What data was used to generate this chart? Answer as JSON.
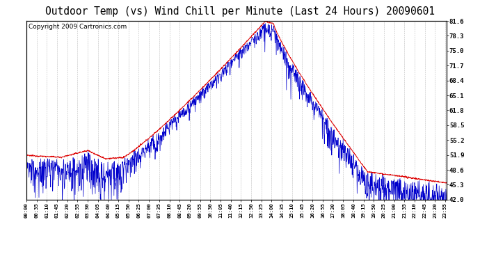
{
  "title": "Outdoor Temp (vs) Wind Chill per Minute (Last 24 Hours) 20090601",
  "copyright": "Copyright 2009 Cartronics.com",
  "y_ticks": [
    42.0,
    45.3,
    48.6,
    51.9,
    55.2,
    58.5,
    61.8,
    65.1,
    68.4,
    71.7,
    75.0,
    78.3,
    81.6
  ],
  "ylim": [
    42.0,
    81.6
  ],
  "x_labels": [
    "00:00",
    "00:35",
    "01:10",
    "01:45",
    "02:20",
    "02:55",
    "03:30",
    "04:05",
    "04:40",
    "05:15",
    "05:50",
    "06:25",
    "07:00",
    "07:35",
    "08:10",
    "08:45",
    "09:20",
    "09:55",
    "10:30",
    "11:05",
    "11:40",
    "12:15",
    "12:50",
    "13:25",
    "14:00",
    "14:35",
    "15:10",
    "15:45",
    "16:20",
    "16:55",
    "17:30",
    "18:05",
    "18:40",
    "19:15",
    "19:50",
    "20:25",
    "21:00",
    "21:35",
    "22:10",
    "22:45",
    "23:20",
    "23:55"
  ],
  "background_color": "#ffffff",
  "plot_bg_color": "#ffffff",
  "grid_color": "#bbbbbb",
  "line_color_red": "#dd0000",
  "line_color_blue": "#0000cc",
  "title_fontsize": 11,
  "copyright_fontsize": 6.5
}
